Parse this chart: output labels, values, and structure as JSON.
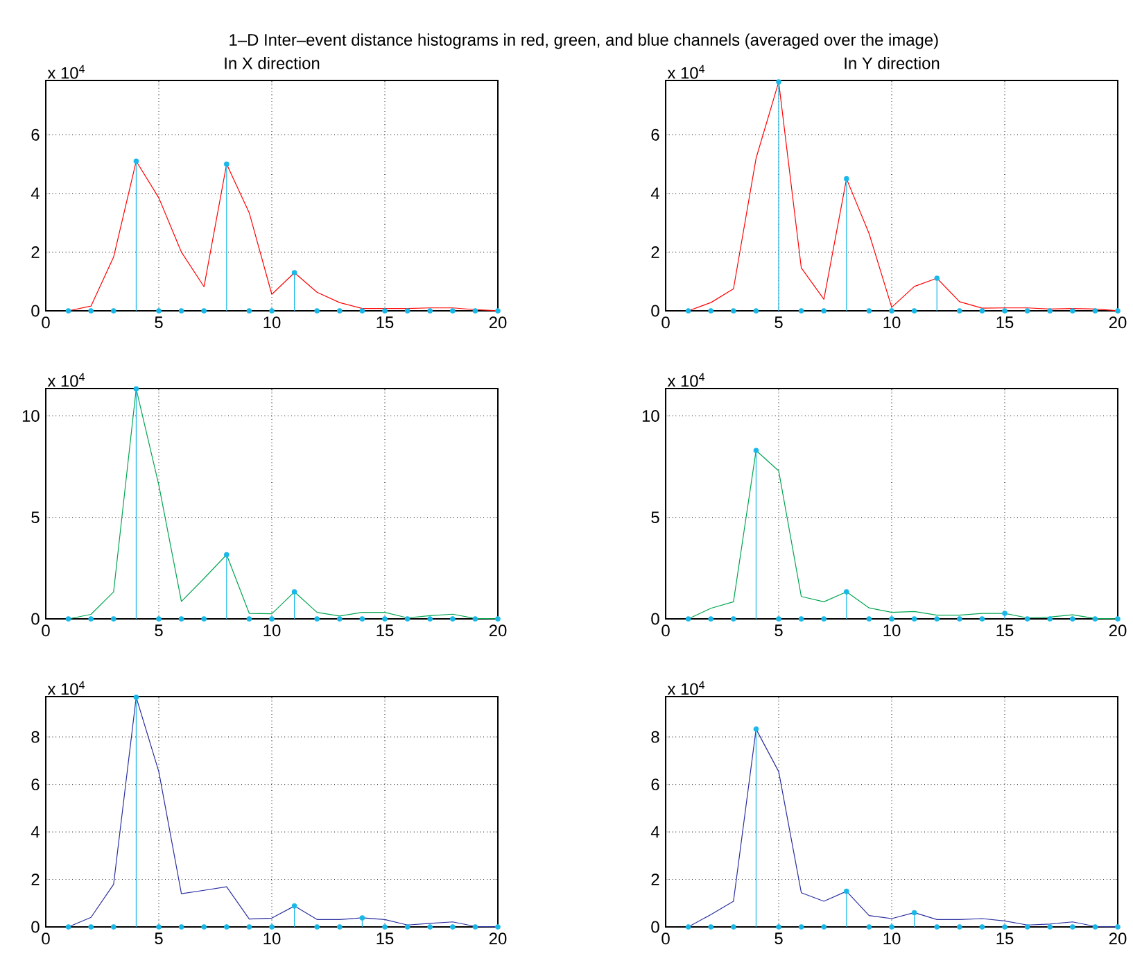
{
  "chart_data": [
    {
      "type": "line",
      "title": "In X direction",
      "x": [
        1,
        2,
        3,
        4,
        5,
        6,
        7,
        8,
        9,
        10,
        11,
        12,
        13,
        14,
        15,
        16,
        17,
        18,
        19,
        20
      ],
      "xlim": [
        0,
        20
      ],
      "ylim": [
        0,
        7.85
      ],
      "xticks": [
        0,
        5,
        10,
        15,
        20
      ],
      "yticks": [
        0,
        2,
        4,
        6
      ],
      "grid": true,
      "annotations": [
        "1–D Inter–event distance histograms in red, green, and blue channels (averaged over the image)",
        "x 10$^{4}$"
      ],
      "series": [
        {
          "type": "line",
          "color": "#ff0000",
          "marker": "none",
          "values": [
            0,
            0.16,
            1.83,
            5.1,
            3.85,
            2.0,
            0.82,
            5.0,
            3.34,
            0.56,
            1.3,
            0.63,
            0.28,
            0.08,
            0.08,
            0.08,
            0.1,
            0.1,
            0.04,
            0
          ]
        },
        {
          "type": "lollipop",
          "color": "#1ab8e8",
          "marker": "circle",
          "values": [
            0,
            0,
            0,
            5.1,
            0,
            0,
            0,
            5.0,
            0,
            0,
            1.3,
            0,
            0,
            0,
            0,
            0,
            0,
            0,
            0,
            0
          ]
        }
      ]
    },
    {
      "type": "line",
      "title": "In Y direction",
      "x": [
        1,
        2,
        3,
        4,
        5,
        6,
        7,
        8,
        9,
        10,
        11,
        12,
        13,
        14,
        15,
        16,
        17,
        18,
        19,
        20
      ],
      "xlim": [
        0,
        20
      ],
      "ylim": [
        0,
        7.85
      ],
      "xticks": [
        0,
        5,
        10,
        15,
        20
      ],
      "yticks": [
        0,
        2,
        4,
        6
      ],
      "grid": true,
      "annotations": [
        "x 10$^{4}$"
      ],
      "series": [
        {
          "type": "line",
          "color": "#ff0000",
          "marker": "none",
          "values": [
            0,
            0.28,
            0.75,
            5.2,
            7.8,
            1.46,
            0.39,
            4.5,
            2.63,
            0.12,
            0.83,
            1.11,
            0.31,
            0.09,
            0.1,
            0.1,
            0.06,
            0.08,
            0.06,
            0
          ]
        },
        {
          "type": "lollipop",
          "color": "#1ab8e8",
          "marker": "circle",
          "values": [
            0,
            0,
            0,
            0,
            7.8,
            0,
            0,
            4.5,
            0,
            0,
            0,
            1.11,
            0,
            0,
            0,
            0,
            0,
            0,
            0,
            0
          ]
        }
      ]
    },
    {
      "type": "line",
      "x": [
        1,
        2,
        3,
        4,
        5,
        6,
        7,
        8,
        9,
        10,
        11,
        12,
        13,
        14,
        15,
        16,
        17,
        18,
        19,
        20
      ],
      "xlim": [
        0,
        20
      ],
      "ylim": [
        0,
        11.35
      ],
      "xticks": [
        0,
        5,
        10,
        15,
        20
      ],
      "yticks": [
        0,
        5,
        10
      ],
      "grid": true,
      "annotations": [
        "x 10$^{4}$"
      ],
      "series": [
        {
          "type": "line",
          "color": "#00a550",
          "marker": "none",
          "values": [
            0,
            0.22,
            1.33,
            11.33,
            6.6,
            0.86,
            1.99,
            3.16,
            0.27,
            0.25,
            1.33,
            0.32,
            0.14,
            0.32,
            0.32,
            0.05,
            0.16,
            0.23,
            0.02,
            0
          ]
        },
        {
          "type": "lollipop",
          "color": "#1ab8e8",
          "marker": "circle",
          "values": [
            0,
            0,
            0,
            11.33,
            0,
            0,
            0,
            3.16,
            0,
            0,
            1.33,
            0,
            0,
            0,
            0,
            0,
            0,
            0,
            0,
            0
          ]
        }
      ]
    },
    {
      "type": "line",
      "x": [
        1,
        2,
        3,
        4,
        5,
        6,
        7,
        8,
        9,
        10,
        11,
        12,
        13,
        14,
        15,
        16,
        17,
        18,
        19,
        20
      ],
      "xlim": [
        0,
        20
      ],
      "ylim": [
        0,
        11.35
      ],
      "xticks": [
        0,
        5,
        10,
        15,
        20
      ],
      "yticks": [
        0,
        5,
        10
      ],
      "grid": true,
      "annotations": [
        "x 10$^{4}$"
      ],
      "series": [
        {
          "type": "line",
          "color": "#00a550",
          "marker": "none",
          "values": [
            0,
            0.52,
            0.84,
            8.3,
            7.29,
            1.1,
            0.84,
            1.33,
            0.54,
            0.32,
            0.36,
            0.18,
            0.18,
            0.27,
            0.27,
            0.05,
            0.09,
            0.2,
            0.02,
            0
          ]
        },
        {
          "type": "lollipop",
          "color": "#1ab8e8",
          "marker": "circle",
          "values": [
            0,
            0,
            0,
            8.3,
            0,
            0,
            0,
            1.33,
            0,
            0,
            0,
            0,
            0,
            0,
            0.27,
            0,
            0,
            0,
            0,
            0
          ]
        }
      ]
    },
    {
      "type": "line",
      "x": [
        1,
        2,
        3,
        4,
        5,
        6,
        7,
        8,
        9,
        10,
        11,
        12,
        13,
        14,
        15,
        16,
        17,
        18,
        19,
        20
      ],
      "xlim": [
        0,
        20
      ],
      "ylim": [
        0,
        9.7
      ],
      "xticks": [
        0,
        5,
        10,
        15,
        20
      ],
      "yticks": [
        0,
        2,
        4,
        6,
        8
      ],
      "grid": true,
      "annotations": [
        "x 10$^{4}$"
      ],
      "series": [
        {
          "type": "line",
          "color": "#2a2f9e",
          "marker": "none",
          "values": [
            0,
            0.4,
            1.79,
            9.67,
            6.54,
            1.4,
            1.54,
            1.69,
            0.33,
            0.37,
            0.88,
            0.31,
            0.31,
            0.38,
            0.31,
            0.08,
            0.15,
            0.21,
            0.02,
            0
          ]
        },
        {
          "type": "lollipop",
          "color": "#1ab8e8",
          "marker": "circle",
          "values": [
            0,
            0,
            0,
            9.67,
            0,
            0,
            0,
            0,
            0,
            0,
            0.88,
            0,
            0,
            0.38,
            0,
            0,
            0,
            0,
            0,
            0
          ]
        }
      ]
    },
    {
      "type": "line",
      "x": [
        1,
        2,
        3,
        4,
        5,
        6,
        7,
        8,
        9,
        10,
        11,
        12,
        13,
        14,
        15,
        16,
        17,
        18,
        19,
        20
      ],
      "xlim": [
        0,
        20
      ],
      "ylim": [
        0,
        9.7
      ],
      "xticks": [
        0,
        5,
        10,
        15,
        20
      ],
      "yticks": [
        0,
        2,
        4,
        6,
        8
      ],
      "grid": true,
      "annotations": [
        "x 10$^{4}$"
      ],
      "series": [
        {
          "type": "line",
          "color": "#2a2f9e",
          "marker": "none",
          "values": [
            0,
            0.52,
            1.08,
            8.33,
            6.54,
            1.44,
            1.08,
            1.5,
            0.48,
            0.35,
            0.6,
            0.31,
            0.31,
            0.35,
            0.25,
            0.08,
            0.12,
            0.21,
            0.02,
            0
          ]
        },
        {
          "type": "lollipop",
          "color": "#1ab8e8",
          "marker": "circle",
          "values": [
            0,
            0,
            0,
            8.33,
            0,
            0,
            0,
            1.5,
            0,
            0,
            0.6,
            0,
            0,
            0,
            0,
            0,
            0,
            0,
            0,
            0
          ]
        }
      ]
    }
  ]
}
